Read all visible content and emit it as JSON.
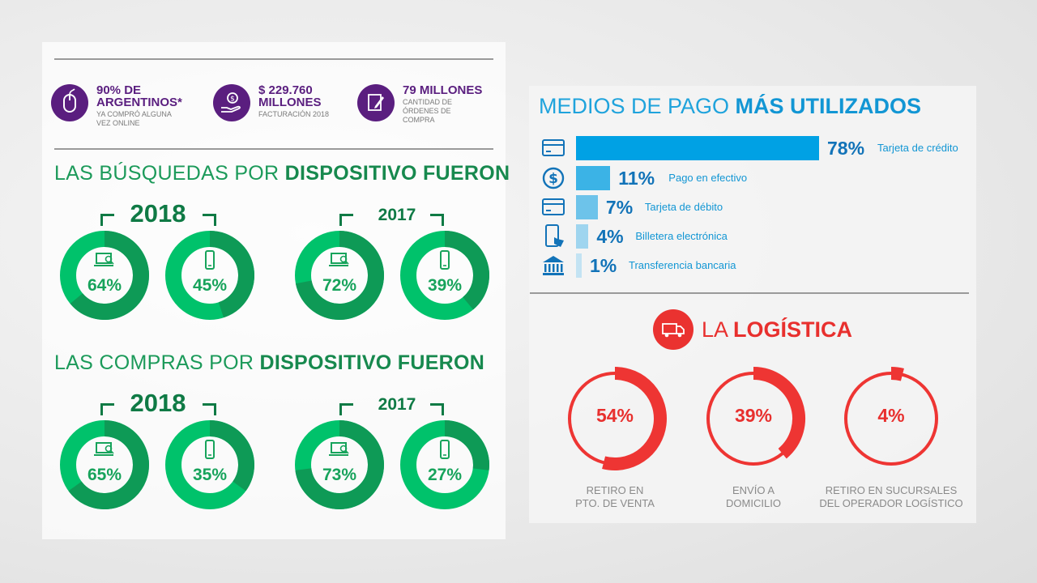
{
  "stats": [
    {
      "main": "90% DE ARGENTINOS*",
      "sub": "YA COMPRÓ ALGUNA VEZ ONLINE",
      "icon": "mouse-icon"
    },
    {
      "main": "$ 229.760 MILLONES",
      "sub": "FACTURACIÓN 2018",
      "icon": "money-hand-icon"
    },
    {
      "main": "79 MILLONES",
      "sub": "CANTIDAD DE ÓRDENES DE COMPRA",
      "icon": "order-edit-icon"
    }
  ],
  "searches": {
    "title_light": "LAS BÚSQUEDAS POR ",
    "title_bold": "DISPOSITIVO FUERON",
    "year_a": "2018",
    "year_b": "2017"
  },
  "purchases": {
    "title_light": "LAS COMPRAS POR ",
    "title_bold": "DISPOSITIVO FUERON",
    "year_a": "2018",
    "year_b": "2017"
  },
  "payments": {
    "title_light": "MEDIOS DE PAGO ",
    "title_bold": "MÁS UTILIZADOS"
  },
  "logistics": {
    "title_light": "LA ",
    "title_bold": "LOGÍSTICA",
    "icon": "truck-icon"
  },
  "colors": {
    "green": "#00c26b",
    "green_dark": "#0e9a56",
    "blue": "#00a1e4",
    "red": "#ee3533",
    "purple": "#5a1e7f"
  },
  "chart_data": [
    {
      "type": "pie",
      "title": "LAS BÚSQUEDAS POR DISPOSITIVO FUERON",
      "groups": [
        {
          "year": "2018",
          "slices": [
            {
              "device": "desktop",
              "value": 64,
              "label": "64%"
            },
            {
              "device": "mobile",
              "value": 45,
              "label": "45%"
            }
          ]
        },
        {
          "year": "2017",
          "slices": [
            {
              "device": "desktop",
              "value": 72,
              "label": "72%"
            },
            {
              "device": "mobile",
              "value": 39,
              "label": "39%"
            }
          ]
        }
      ]
    },
    {
      "type": "pie",
      "title": "LAS COMPRAS POR DISPOSITIVO FUERON",
      "groups": [
        {
          "year": "2018",
          "slices": [
            {
              "device": "desktop",
              "value": 65,
              "label": "65%"
            },
            {
              "device": "mobile",
              "value": 35,
              "label": "35%"
            }
          ]
        },
        {
          "year": "2017",
          "slices": [
            {
              "device": "desktop",
              "value": 73,
              "label": "73%"
            },
            {
              "device": "mobile",
              "value": 27,
              "label": "27%"
            }
          ]
        }
      ]
    },
    {
      "type": "bar",
      "title": "MEDIOS DE PAGO MÁS UTILIZADOS",
      "categories": [
        "Tarjeta de crédito",
        "Pago en efectivo",
        "Tarjeta de débito",
        "Billetera electrónica",
        "Transferencia bancaria"
      ],
      "values": [
        78,
        11,
        7,
        4,
        1
      ],
      "value_labels": [
        "78%",
        "11%",
        "7%",
        "4%",
        "1%"
      ],
      "icons": [
        "credit-card-icon",
        "dollar-coin-icon",
        "debit-card-icon",
        "phone-wallet-icon",
        "bank-icon"
      ],
      "colors": [
        "#00a1e4",
        "#3bb3e6",
        "#6dc3ea",
        "#9fd5ef",
        "#c3e3f3"
      ]
    },
    {
      "type": "pie",
      "title": "LA LOGÍSTICA",
      "slices": [
        {
          "label": "RETIRO EN PTO. DE VENTA",
          "value": 54,
          "value_label": "54%"
        },
        {
          "label": "ENVÍO A DOMICILIO",
          "value": 39,
          "value_label": "39%"
        },
        {
          "label": "RETIRO EN SUCURSALES DEL OPERADOR LOGÍSTICO",
          "value": 4,
          "value_label": "4%"
        }
      ]
    }
  ]
}
